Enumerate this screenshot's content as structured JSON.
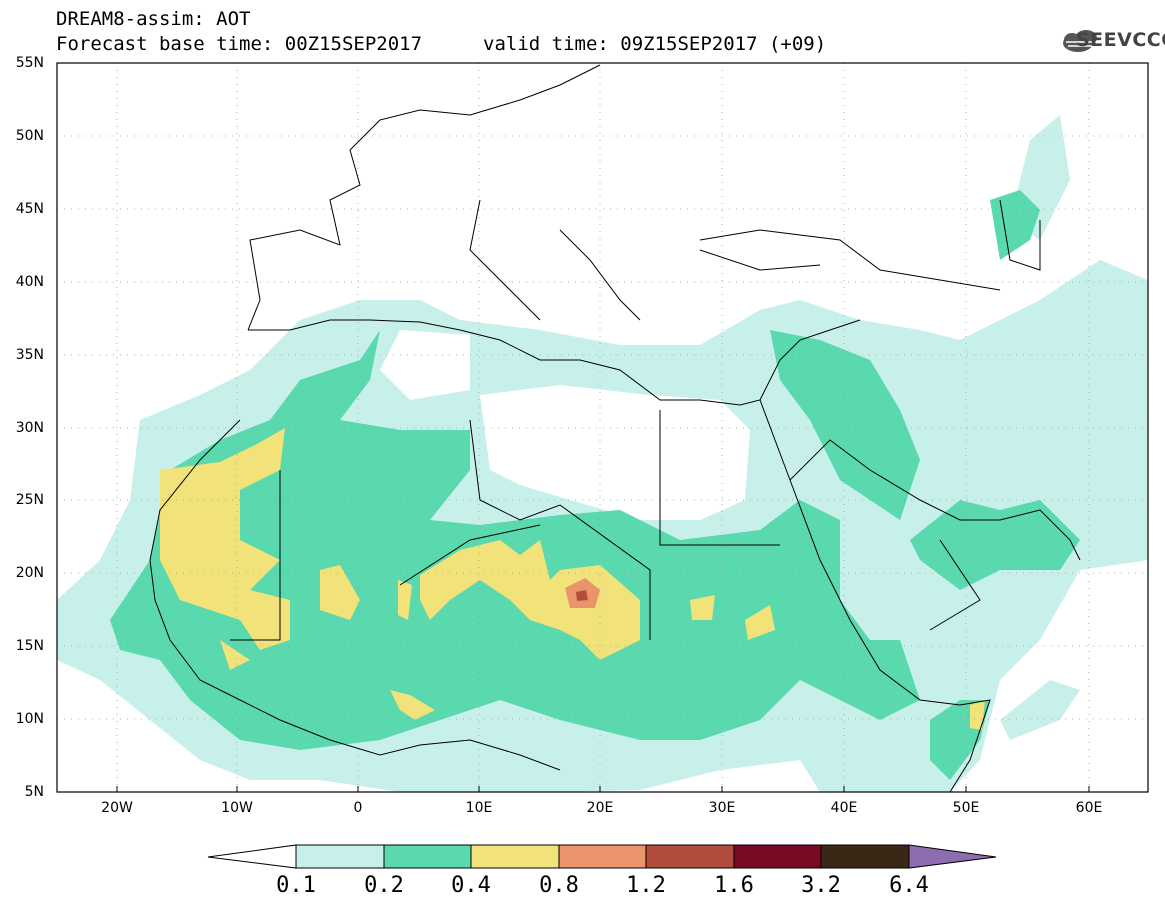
{
  "header": {
    "title": "DREAM8-assim: AOT",
    "base_time": "Forecast base time: 00Z15SEP2017",
    "valid_time": "valid time: 09Z15SEP2017 (+09)",
    "logo": "SEEVCCC"
  },
  "map": {
    "lon_range": [
      -25,
      65
    ],
    "lat_range": [
      5,
      55
    ],
    "lat_labels": [
      "55N",
      "50N",
      "45N",
      "40N",
      "35N",
      "30N",
      "25N",
      "20N",
      "15N",
      "10N",
      "5N"
    ],
    "lon_labels": [
      "20W",
      "10W",
      "0",
      "10E",
      "20E",
      "30E",
      "40E",
      "50E",
      "60E"
    ],
    "gridlines": "dotted"
  },
  "colorbar": {
    "labels": [
      "0.1",
      "0.2",
      "0.4",
      "0.8",
      "1.2",
      "1.6",
      "3.2",
      "6.4"
    ],
    "colors": [
      "#ffffff",
      "#c8f0ea",
      "#5ad8ae",
      "#f2e27a",
      "#e9946a",
      "#b24d3e",
      "#7a0a24",
      "#3a2716",
      "#8e6cb0"
    ]
  }
}
